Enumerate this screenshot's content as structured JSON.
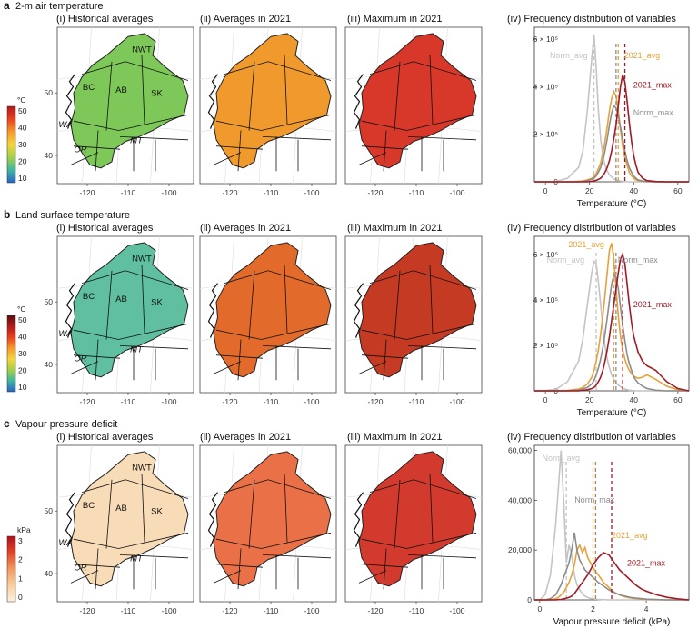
{
  "rows": [
    {
      "letter": "a",
      "title": "2-m air temperature",
      "panels": [
        "(i) Historical averages",
        "(ii) Averages in 2021",
        "(iii) Maximum in 2021",
        "(iv) Frequency distribution of variables"
      ],
      "colorbar": {
        "unit": "°C",
        "ticks": [
          "50",
          "40",
          "30",
          "20",
          "10"
        ],
        "stops": [
          "#b11a1a",
          "#e8411f",
          "#f59a2b",
          "#f4d43a",
          "#a6cf4a",
          "#3fb6a0",
          "#2a63c4"
        ]
      },
      "map_colors": {
        "historical": "#7ec85a",
        "avg2021": "#f09a2e",
        "max2021": "#d8382a"
      },
      "chart_data": {
        "type": "line",
        "xlabel": "Temperature (°C)",
        "ylabel": "",
        "xlim": [
          -5,
          65
        ],
        "ylim": [
          0,
          650000
        ],
        "xticks": [
          "0",
          "20",
          "40",
          "60"
        ],
        "yticks": [
          "0",
          "2 × 10⁵",
          "4 × 10⁵",
          "6 × 10⁵"
        ],
        "x": [
          -5,
          0,
          5,
          10,
          15,
          17,
          19,
          21,
          22,
          23,
          24,
          25,
          26,
          27,
          28,
          29,
          30,
          31,
          32,
          33,
          34,
          35,
          36,
          37,
          38,
          39,
          40,
          41,
          42,
          44,
          46,
          50,
          55,
          60,
          65
        ],
        "series": [
          {
            "name": "Norm_avg",
            "color": "#c4c4c4",
            "mean": 22,
            "values": [
              0,
              0,
              2000,
              15000,
              60000,
              130000,
              300000,
              520000,
              620000,
              480000,
              300000,
              180000,
              110000,
              70000,
              45000,
              30000,
              20000,
              12000,
              8000,
              5000,
              3000,
              2000,
              1000,
              0,
              0,
              0,
              0,
              0,
              0,
              0,
              0,
              0,
              0,
              0,
              0
            ]
          },
          {
            "name": "2021_avg",
            "color": "#e6a13a",
            "mean": 33,
            "values": [
              0,
              0,
              0,
              0,
              2000,
              4000,
              8000,
              15000,
              22000,
              35000,
              55000,
              80000,
              120000,
              170000,
              230000,
              300000,
              350000,
              380000,
              360000,
              300000,
              220000,
              150000,
              100000,
              70000,
              40000,
              25000,
              15000,
              8000,
              5000,
              2000,
              1000,
              0,
              0,
              0,
              0
            ]
          },
          {
            "name": "Norm_max",
            "color": "#8c8c8c",
            "mean": 32,
            "values": [
              0,
              0,
              0,
              0,
              0,
              2000,
              5000,
              10000,
              15000,
              25000,
              40000,
              60000,
              90000,
              130000,
              180000,
              240000,
              290000,
              320000,
              310000,
              280000,
              230000,
              180000,
              130000,
              90000,
              60000,
              40000,
              25000,
              15000,
              8000,
              3000,
              1000,
              0,
              0,
              0,
              0
            ]
          },
          {
            "name": "2021_max",
            "color": "#a11a25",
            "mean": 36,
            "values": [
              0,
              0,
              0,
              0,
              0,
              0,
              0,
              2000,
              4000,
              6000,
              10000,
              15000,
              25000,
              40000,
              60000,
              90000,
              130000,
              180000,
              240000,
              320000,
              400000,
              450000,
              420000,
              340000,
              250000,
              170000,
              110000,
              70000,
              40000,
              15000,
              5000,
              1000,
              0,
              0,
              0
            ]
          }
        ]
      }
    },
    {
      "letter": "b",
      "title": "Land surface temperature",
      "panels": [
        "(i) Historical averages",
        "(ii) Averages in 2021",
        "(iii) Maximum in 2021",
        "(iv) Frequency distribution of variables"
      ],
      "colorbar": {
        "unit": "°C",
        "ticks": [
          "50",
          "40",
          "30",
          "20",
          "10"
        ],
        "stops": [
          "#5a0d12",
          "#b11a1a",
          "#e8411f",
          "#f59a2b",
          "#f4d43a",
          "#a6cf4a",
          "#3fb6a0",
          "#2a63c4"
        ]
      },
      "map_colors": {
        "historical": "#5fbfa0",
        "avg2021": "#e26a2a",
        "max2021": "#c43a22"
      },
      "chart_data": {
        "type": "line",
        "xlabel": "Temperature (°C)",
        "ylabel": "",
        "xlim": [
          -5,
          65
        ],
        "ylim": [
          0,
          680000
        ],
        "xticks": [
          "0",
          "20",
          "40",
          "60"
        ],
        "yticks": [
          "0",
          "2 × 10⁵",
          "4 × 10⁵",
          "6 × 10⁵"
        ],
        "x": [
          -5,
          0,
          5,
          10,
          15,
          17,
          19,
          21,
          22,
          23,
          24,
          25,
          26,
          27,
          28,
          29,
          30,
          31,
          32,
          33,
          34,
          35,
          36,
          37,
          38,
          39,
          40,
          42,
          44,
          46,
          50,
          55,
          60,
          65
        ],
        "series": [
          {
            "name": "Norm_avg",
            "color": "#c4c4c4",
            "mean": 23,
            "values": [
              0,
              1000,
              8000,
              40000,
              130000,
              230000,
              380000,
              520000,
              570000,
              560000,
              480000,
              380000,
              280000,
              200000,
              140000,
              100000,
              70000,
              50000,
              35000,
              25000,
              18000,
              12000,
              8000,
              5000,
              3000,
              2000,
              1000,
              0,
              0,
              0,
              0,
              0,
              0,
              0
            ]
          },
          {
            "name": "2021_avg",
            "color": "#e6a13a",
            "mean": 31,
            "values": [
              0,
              0,
              0,
              2000,
              8000,
              15000,
              30000,
              60000,
              90000,
              130000,
              180000,
              250000,
              330000,
              420000,
              520000,
              620000,
              650000,
              580000,
              450000,
              330000,
              240000,
              180000,
              140000,
              110000,
              90000,
              75000,
              65000,
              55000,
              60000,
              70000,
              50000,
              20000,
              5000,
              0
            ]
          },
          {
            "name": "Norm_max",
            "color": "#8c8c8c",
            "mean": 32,
            "values": [
              0,
              0,
              0,
              0,
              3000,
              8000,
              15000,
              30000,
              45000,
              70000,
              100000,
              140000,
              190000,
              250000,
              320000,
              400000,
              470000,
              510000,
              500000,
              450000,
              370000,
              290000,
              220000,
              160000,
              120000,
              90000,
              60000,
              35000,
              20000,
              10000,
              3000,
              0,
              0,
              0
            ]
          },
          {
            "name": "2021_max",
            "color": "#a11a25",
            "mean": 35,
            "values": [
              0,
              0,
              0,
              0,
              0,
              2000,
              5000,
              10000,
              15000,
              25000,
              40000,
              60000,
              90000,
              130000,
              180000,
              240000,
              310000,
              380000,
              450000,
              520000,
              580000,
              600000,
              560000,
              470000,
              380000,
              300000,
              240000,
              170000,
              130000,
              110000,
              90000,
              40000,
              10000,
              0
            ]
          }
        ]
      }
    },
    {
      "letter": "c",
      "title": "Vapour pressure deficit",
      "panels": [
        "(i) Historical averages",
        "(ii) Averages in 2021",
        "(iii) Maximum in 2021",
        "(iv) Frequency distribution of variables"
      ],
      "colorbar": {
        "unit": "kPa",
        "ticks": [
          "3",
          "2",
          "1",
          "0"
        ],
        "stops": [
          "#b0101c",
          "#e0452a",
          "#f29a5e",
          "#f8cfa0",
          "#fdf0dc"
        ]
      },
      "map_colors": {
        "historical": "#f8dcb8",
        "avg2021": "#ea7048",
        "max2021": "#d23a2e"
      },
      "chart_data": {
        "type": "line",
        "xlabel": "Vapour pressure deficit (kPa)",
        "ylabel": "",
        "xlim": [
          -0.2,
          5.6
        ],
        "ylim": [
          0,
          62000
        ],
        "xticks": [
          "0",
          "2",
          "4"
        ],
        "yticks": [
          "0",
          "20,000",
          "40,000",
          "60,000"
        ],
        "x": [
          -0.2,
          0,
          0.2,
          0.4,
          0.6,
          0.7,
          0.8,
          0.9,
          1.0,
          1.1,
          1.2,
          1.3,
          1.4,
          1.5,
          1.6,
          1.7,
          1.8,
          1.9,
          2.0,
          2.2,
          2.4,
          2.6,
          2.8,
          3.0,
          3.2,
          3.4,
          3.6,
          3.8,
          4.0,
          4.4,
          4.8,
          5.2,
          5.6
        ],
        "series": [
          {
            "name": "Norm_avg",
            "color": "#c4c4c4",
            "mean": 1.0,
            "values": [
              0,
              0,
              2000,
              10000,
              30000,
              45000,
              60000,
              40000,
              15000,
              22000,
              18000,
              10000,
              6000,
              4000,
              2500,
              1500,
              1000,
              600,
              400,
              200,
              100,
              0,
              0,
              0,
              0,
              0,
              0,
              0,
              0,
              0,
              0,
              0,
              0
            ]
          },
          {
            "name": "2021_avg",
            "color": "#e6a13a",
            "mean": 2.0,
            "values": [
              0,
              0,
              0,
              0,
              500,
              1000,
              2000,
              3000,
              5000,
              7000,
              10000,
              14000,
              20000,
              22000,
              19000,
              21000,
              17000,
              15000,
              13000,
              10000,
              7000,
              5000,
              3000,
              2000,
              1200,
              800,
              500,
              300,
              200,
              100,
              0,
              0,
              0
            ]
          },
          {
            "name": "Norm_max",
            "color": "#8c8c8c",
            "mean": 2.1,
            "values": [
              0,
              0,
              0,
              500,
              2000,
              4000,
              6000,
              9000,
              12000,
              15000,
              20000,
              27000,
              20000,
              16000,
              14000,
              12000,
              11000,
              10000,
              9000,
              7000,
              5500,
              4000,
              3000,
              2000,
              1500,
              1000,
              700,
              500,
              300,
              100,
              0,
              0,
              0
            ]
          },
          {
            "name": "2021_max",
            "color": "#a11a25",
            "mean": 2.7,
            "values": [
              0,
              0,
              0,
              0,
              0,
              100,
              200,
              400,
              700,
              1000,
              1500,
              2500,
              4000,
              5500,
              7000,
              8500,
              10000,
              12000,
              14000,
              17000,
              19000,
              18000,
              15000,
              12000,
              10000,
              8000,
              6000,
              4500,
              3500,
              2000,
              1000,
              400,
              0
            ]
          }
        ]
      }
    }
  ],
  "map": {
    "x_ticks": [
      "-120",
      "-110",
      "-100"
    ],
    "y_ticks": [
      "50",
      "40"
    ],
    "labels_normal": [
      "NWT",
      "BC",
      "AB",
      "SK"
    ],
    "labels_italic": [
      "WA",
      "OR",
      "MT"
    ]
  }
}
